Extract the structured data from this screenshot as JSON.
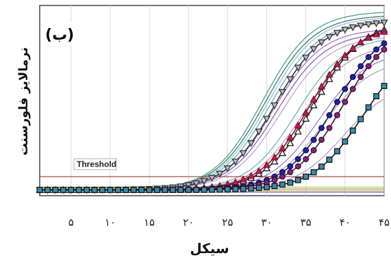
{
  "chart_data": {
    "type": "line",
    "title": "",
    "panel_label": "(ب)",
    "xlabel": "سیکل",
    "ylabel": "نرمالایز فلورسنت",
    "xlim": [
      1,
      45
    ],
    "ylim": [
      0,
      1.0
    ],
    "x_ticks": [
      5,
      10,
      15,
      20,
      25,
      30,
      35,
      40,
      45
    ],
    "x_tick_labels": [
      "۵",
      "۱۰",
      "۱۵",
      "۲۰",
      "۲۵",
      "۳۰",
      "۳۵",
      "۴۰",
      "۴۵"
    ],
    "grid": "vertical",
    "threshold": {
      "label": "Threshold",
      "value": 0.1,
      "color": "#a03a3a"
    },
    "fitted_curves": [
      {
        "midpoint": 29.5,
        "plateau": 0.97,
        "color": "#3a9a7a"
      },
      {
        "midpoint": 29.8,
        "plateau": 0.95,
        "color": "#2f6f5a"
      },
      {
        "midpoint": 30.1,
        "plateau": 0.94,
        "color": "#8fbcd8"
      },
      {
        "midpoint": 30.4,
        "plateau": 0.92,
        "color": "#5aa6c8"
      },
      {
        "midpoint": 30.9,
        "plateau": 0.88,
        "color": "#9a6ec8"
      },
      {
        "midpoint": 31.3,
        "plateau": 0.86,
        "color": "#7d4fb5"
      },
      {
        "midpoint": 31.8,
        "plateau": 0.84,
        "color": "#b0a0d8"
      },
      {
        "midpoint": 33.8,
        "plateau": 0.84,
        "color": "#5fb3a3"
      },
      {
        "midpoint": 34.4,
        "plateau": 0.8,
        "color": "#c08fc0"
      },
      {
        "midpoint": 36.6,
        "plateau": 0.76,
        "color": "#8a7ac8"
      },
      {
        "midpoint": 37.2,
        "plateau": 0.72,
        "color": "#a0a0a0"
      },
      {
        "midpoint": 39.8,
        "plateau": 0.6,
        "color": "#b890d0"
      }
    ],
    "flat_lines": [
      {
        "level": 0.045,
        "color": "#d0c040"
      },
      {
        "level": 0.035,
        "color": "#6fa06f"
      },
      {
        "level": 0.025,
        "color": "#c09040"
      },
      {
        "level": 0.018,
        "color": "#8070c0"
      }
    ],
    "marker_series": [
      {
        "marker": "triangle-down",
        "midpoint": 31.0,
        "plateau": 0.92,
        "color": "#333333",
        "fill": "#bbbbbb"
      },
      {
        "marker": "triangle-up",
        "midpoint": 36.0,
        "plateau": 0.92,
        "color": "#1a1a1a",
        "fill": "#ffffff"
      },
      {
        "marker": "triangle-up",
        "midpoint": 35.4,
        "plateau": 0.9,
        "color": "#7a1030",
        "fill": "#c02050"
      },
      {
        "marker": "circle",
        "midpoint": 38.6,
        "plateau": 0.9,
        "color": "#101050",
        "fill": "#2020b0"
      },
      {
        "marker": "circle",
        "midpoint": 39.6,
        "plateau": 0.9,
        "color": "#301030",
        "fill": "#902080"
      },
      {
        "marker": "square",
        "midpoint": 42.2,
        "plateau": 0.8,
        "color": "#101010",
        "fill": "#3a8ab0"
      }
    ]
  }
}
